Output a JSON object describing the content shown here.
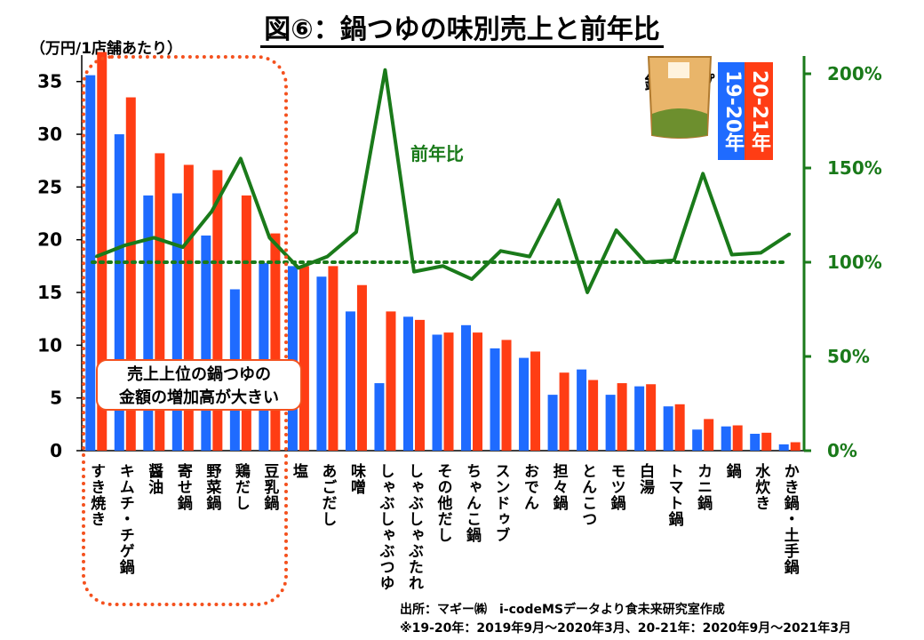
{
  "title": "図⑥：鍋つゆの味別売上と前年比",
  "unit_label": "（万円/1店舗あたり）",
  "annotation": {
    "lines": [
      "売上上位の鍋つゆの",
      "金額の増加高が大きい"
    ]
  },
  "yoy_label": "前年比",
  "legend": {
    "period_a": "19-20年",
    "period_b": "20-21年"
  },
  "product_image_text": "鍋スープ",
  "source": {
    "line1": "出所：マギー㈱　i-codeMSデータより食未来研究室作成",
    "line2": "※19-20年：2019年9月～2020年3月、20-21年：2020年9月～2021年3月"
  },
  "colors": {
    "blue": "#1f6bff",
    "red": "#ff3d14",
    "green": "#1a7a1a",
    "highlight": "#f4511e"
  },
  "chart_data": {
    "type": "bar",
    "categories": [
      "すき焼き",
      "キムチ・チゲ鍋",
      "醤油",
      "寄せ鍋",
      "野菜鍋",
      "鶏だし",
      "豆乳鍋",
      "塩",
      "あごだし",
      "味噌",
      "しゃぶしゃぶつゆ",
      "しゃぶしゃぶたれ",
      "その他だし",
      "ちゃんこ鍋",
      "スンドゥブ",
      "おでん",
      "担々鍋",
      "とんこつ",
      "モツ鍋",
      "白湯",
      "トマト鍋",
      "カニ鍋",
      "鍋",
      "水炊き",
      "かき鍋・土手鍋"
    ],
    "series": [
      {
        "name": "19-20年",
        "axis": "left",
        "color": "#1f6bff",
        "values": [
          35.6,
          30.0,
          24.2,
          24.4,
          20.4,
          15.3,
          17.8,
          17.5,
          16.5,
          13.2,
          6.4,
          12.7,
          11.0,
          11.9,
          9.7,
          8.8,
          5.3,
          7.7,
          5.3,
          6.1,
          4.2,
          2.0,
          2.3,
          1.6,
          0.6
        ]
      },
      {
        "name": "20-21年",
        "axis": "left",
        "color": "#ff3d14",
        "values": [
          37.8,
          33.5,
          28.2,
          27.1,
          26.6,
          24.2,
          20.6,
          17.5,
          17.5,
          15.7,
          13.2,
          12.4,
          11.2,
          11.2,
          10.5,
          9.4,
          7.4,
          6.7,
          6.4,
          6.3,
          4.4,
          3.0,
          2.4,
          1.7,
          0.8
        ]
      },
      {
        "name": "前年比",
        "axis": "right",
        "type": "line",
        "color": "#1a7a1a",
        "values": [
          103,
          109,
          113,
          108,
          127,
          155,
          113,
          97,
          103,
          116,
          202,
          95,
          98,
          91,
          106,
          103,
          133,
          84,
          117,
          100,
          101,
          147,
          104,
          105,
          115
        ]
      }
    ],
    "reference_line": {
      "axis": "right",
      "value": 100,
      "style": "dotted"
    },
    "y_left": {
      "ylim": [
        0,
        37
      ],
      "ticks": [
        0,
        5,
        10,
        15,
        20,
        25,
        30,
        35
      ]
    },
    "y_right": {
      "ylim": [
        0,
        200
      ],
      "ticks": [
        "0%",
        "50%",
        "100%",
        "150%",
        "200%"
      ]
    },
    "highlight_range": [
      "すき焼き",
      "豆乳鍋"
    ]
  }
}
